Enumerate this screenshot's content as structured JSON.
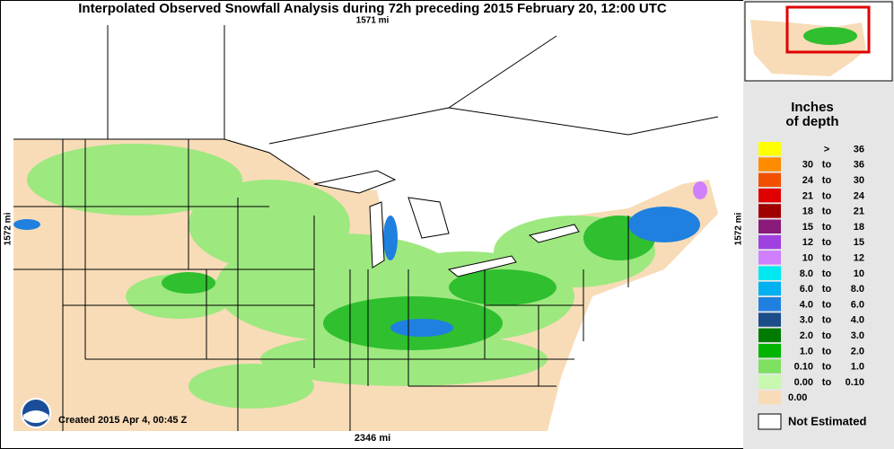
{
  "header": {
    "title": "Interpolated Observed Snowfall Analysis during 72h preceding 2015 February 20, 12:00 UTC"
  },
  "map": {
    "top_scale": "1571 mi",
    "left_scale": "1572 mi",
    "right_scale": "1572 mi",
    "bottom_scale": "2346 mi",
    "created": "Created 2015 Apr 4, 00:45 Z"
  },
  "legend": {
    "title_line1": "Inches",
    "title_line2": "of depth",
    "rows": [
      {
        "parts": [
          ">",
          "36"
        ],
        "color": "#ffff00"
      },
      {
        "parts": [
          "30",
          "to",
          "36"
        ],
        "color": "#ff8c00"
      },
      {
        "parts": [
          "24",
          "to",
          "30"
        ],
        "color": "#f05000"
      },
      {
        "parts": [
          "21",
          "to",
          "24"
        ],
        "color": "#e00000"
      },
      {
        "parts": [
          "18",
          "to",
          "21"
        ],
        "color": "#a00000"
      },
      {
        "parts": [
          "15",
          "to",
          "18"
        ],
        "color": "#8a1a7a"
      },
      {
        "parts": [
          "12",
          "to",
          "15"
        ],
        "color": "#a040e0"
      },
      {
        "parts": [
          "10",
          "to",
          "12"
        ],
        "color": "#d080ff"
      },
      {
        "parts": [
          "8.0",
          "to",
          "10"
        ],
        "color": "#00e8f0"
      },
      {
        "parts": [
          "6.0",
          "to",
          "8.0"
        ],
        "color": "#00b0f0"
      },
      {
        "parts": [
          "4.0",
          "to",
          "6.0"
        ],
        "color": "#2080e0"
      },
      {
        "parts": [
          "3.0",
          "to",
          "4.0"
        ],
        "color": "#1a4d8a"
      },
      {
        "parts": [
          "2.0",
          "to",
          "3.0"
        ],
        "color": "#007a00"
      },
      {
        "parts": [
          "1.0",
          "to",
          "2.0"
        ],
        "color": "#00b400"
      },
      {
        "parts": [
          "0.10",
          "to",
          "1.0"
        ],
        "color": "#7ee060"
      },
      {
        "parts": [
          "0.00",
          "to",
          "0.10"
        ],
        "color": "#c8f8b0"
      },
      {
        "parts": [
          "0.00"
        ],
        "color": "#f8dcb8"
      }
    ],
    "not_estimated": "Not Estimated"
  }
}
